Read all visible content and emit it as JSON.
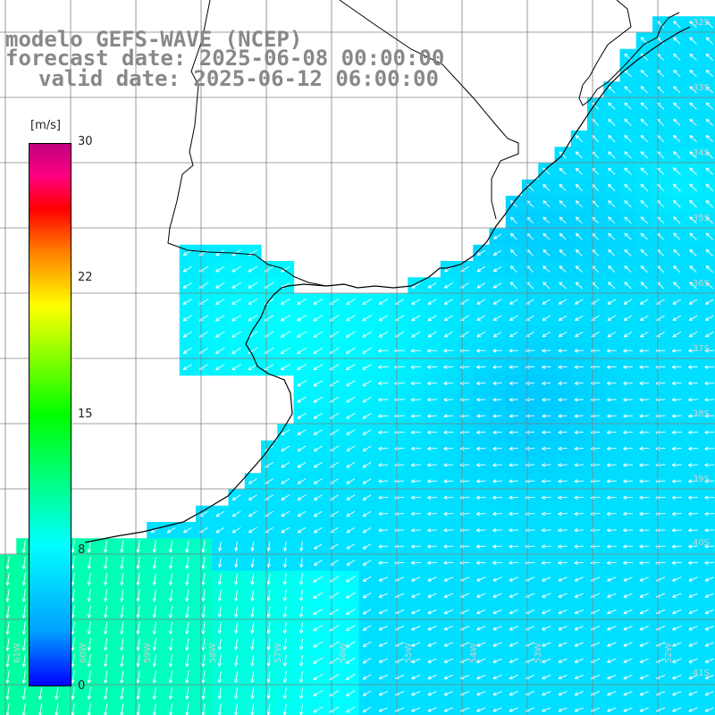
{
  "title": {
    "model": "modelo GEFS-WAVE (NCEP)",
    "forecast": "forecast date: 2025-06-08 00:00:00",
    "valid": "valid date: 2025-06-12 06:00:00"
  },
  "colorbar": {
    "unit": "[m/s]",
    "ticks": [
      "30",
      "22",
      "15",
      "8",
      "0"
    ],
    "min": 0,
    "max": 30,
    "colors": [
      "#0000ff",
      "#00a0ff",
      "#00ffff",
      "#00ff00",
      "#ffff00",
      "#ff8000",
      "#ff0000",
      "#ff0080",
      "#c00080"
    ]
  },
  "grid": {
    "lat_labels": [
      "32S",
      "33S",
      "34S",
      "35S",
      "36S",
      "37S",
      "38S",
      "39S",
      "40S",
      "41S"
    ],
    "lon_labels": [
      "61W",
      "60W",
      "59W",
      "58W",
      "57W",
      "56W",
      "55W",
      "54W",
      "53W",
      "52W"
    ]
  },
  "wind_field": {
    "description_values_m_s": "approx. 8 m/s over the Rio de la Plata and nearshore, 5-6 m/s offshore, 9-11 m/s in the southwest",
    "land_color": "#ffffff",
    "coast_color": "#000000",
    "grid_line_color": "#808080"
  }
}
